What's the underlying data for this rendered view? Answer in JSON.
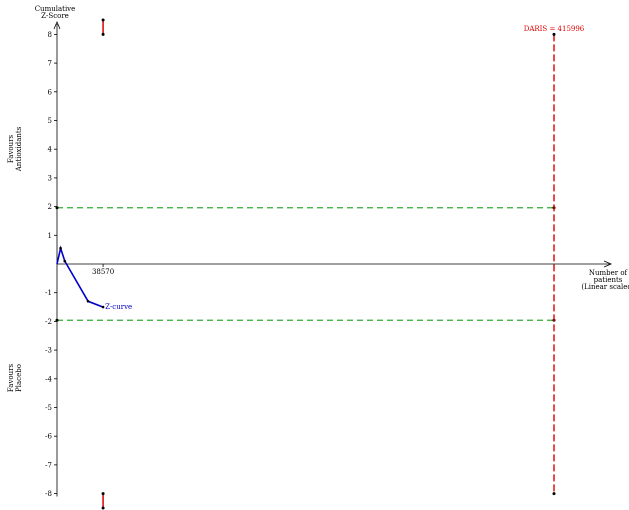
{
  "chart_data": {
    "type": "line",
    "ylabel": [
      "Cumulative",
      "Z-Score"
    ],
    "xlabel": [
      "Number of",
      "patients",
      "(Linear scaled)"
    ],
    "favours_top": [
      "Favours",
      "Antioxidants"
    ],
    "favours_bottom": [
      "Favours",
      "Placebo"
    ],
    "y_ticks": [
      8,
      7,
      6,
      5,
      4,
      3,
      2,
      1,
      -1,
      -2,
      -3,
      -4,
      -5,
      -6,
      -7,
      -8
    ],
    "ylim": [
      -8.5,
      8.5
    ],
    "xlim": [
      0,
      465000
    ],
    "x_tick": {
      "value": 38570,
      "label": "38570"
    },
    "zcurve": {
      "name": "Z-curve",
      "color": "#0000cc",
      "points": [
        {
          "x": 0,
          "y": 0
        },
        {
          "x": 3000,
          "y": 0.55
        },
        {
          "x": 6500,
          "y": 0.1
        },
        {
          "x": 26000,
          "y": -1.3
        },
        {
          "x": 38570,
          "y": -1.5
        }
      ]
    },
    "conventional_boundary": {
      "upper": 1.96,
      "lower": -1.96,
      "color": "#33aa33"
    },
    "daris": {
      "label": "DARIS = 415996",
      "value": 415996,
      "color": "#dd0000"
    },
    "monitoring_boundary_top": [
      {
        "x": 38570,
        "y": 8.5
      },
      {
        "x": 38570,
        "y": 8.0
      }
    ],
    "monitoring_boundary_bottom": [
      {
        "x": 38570,
        "y": -8.0
      },
      {
        "x": 38570,
        "y": -8.5
      }
    ]
  }
}
